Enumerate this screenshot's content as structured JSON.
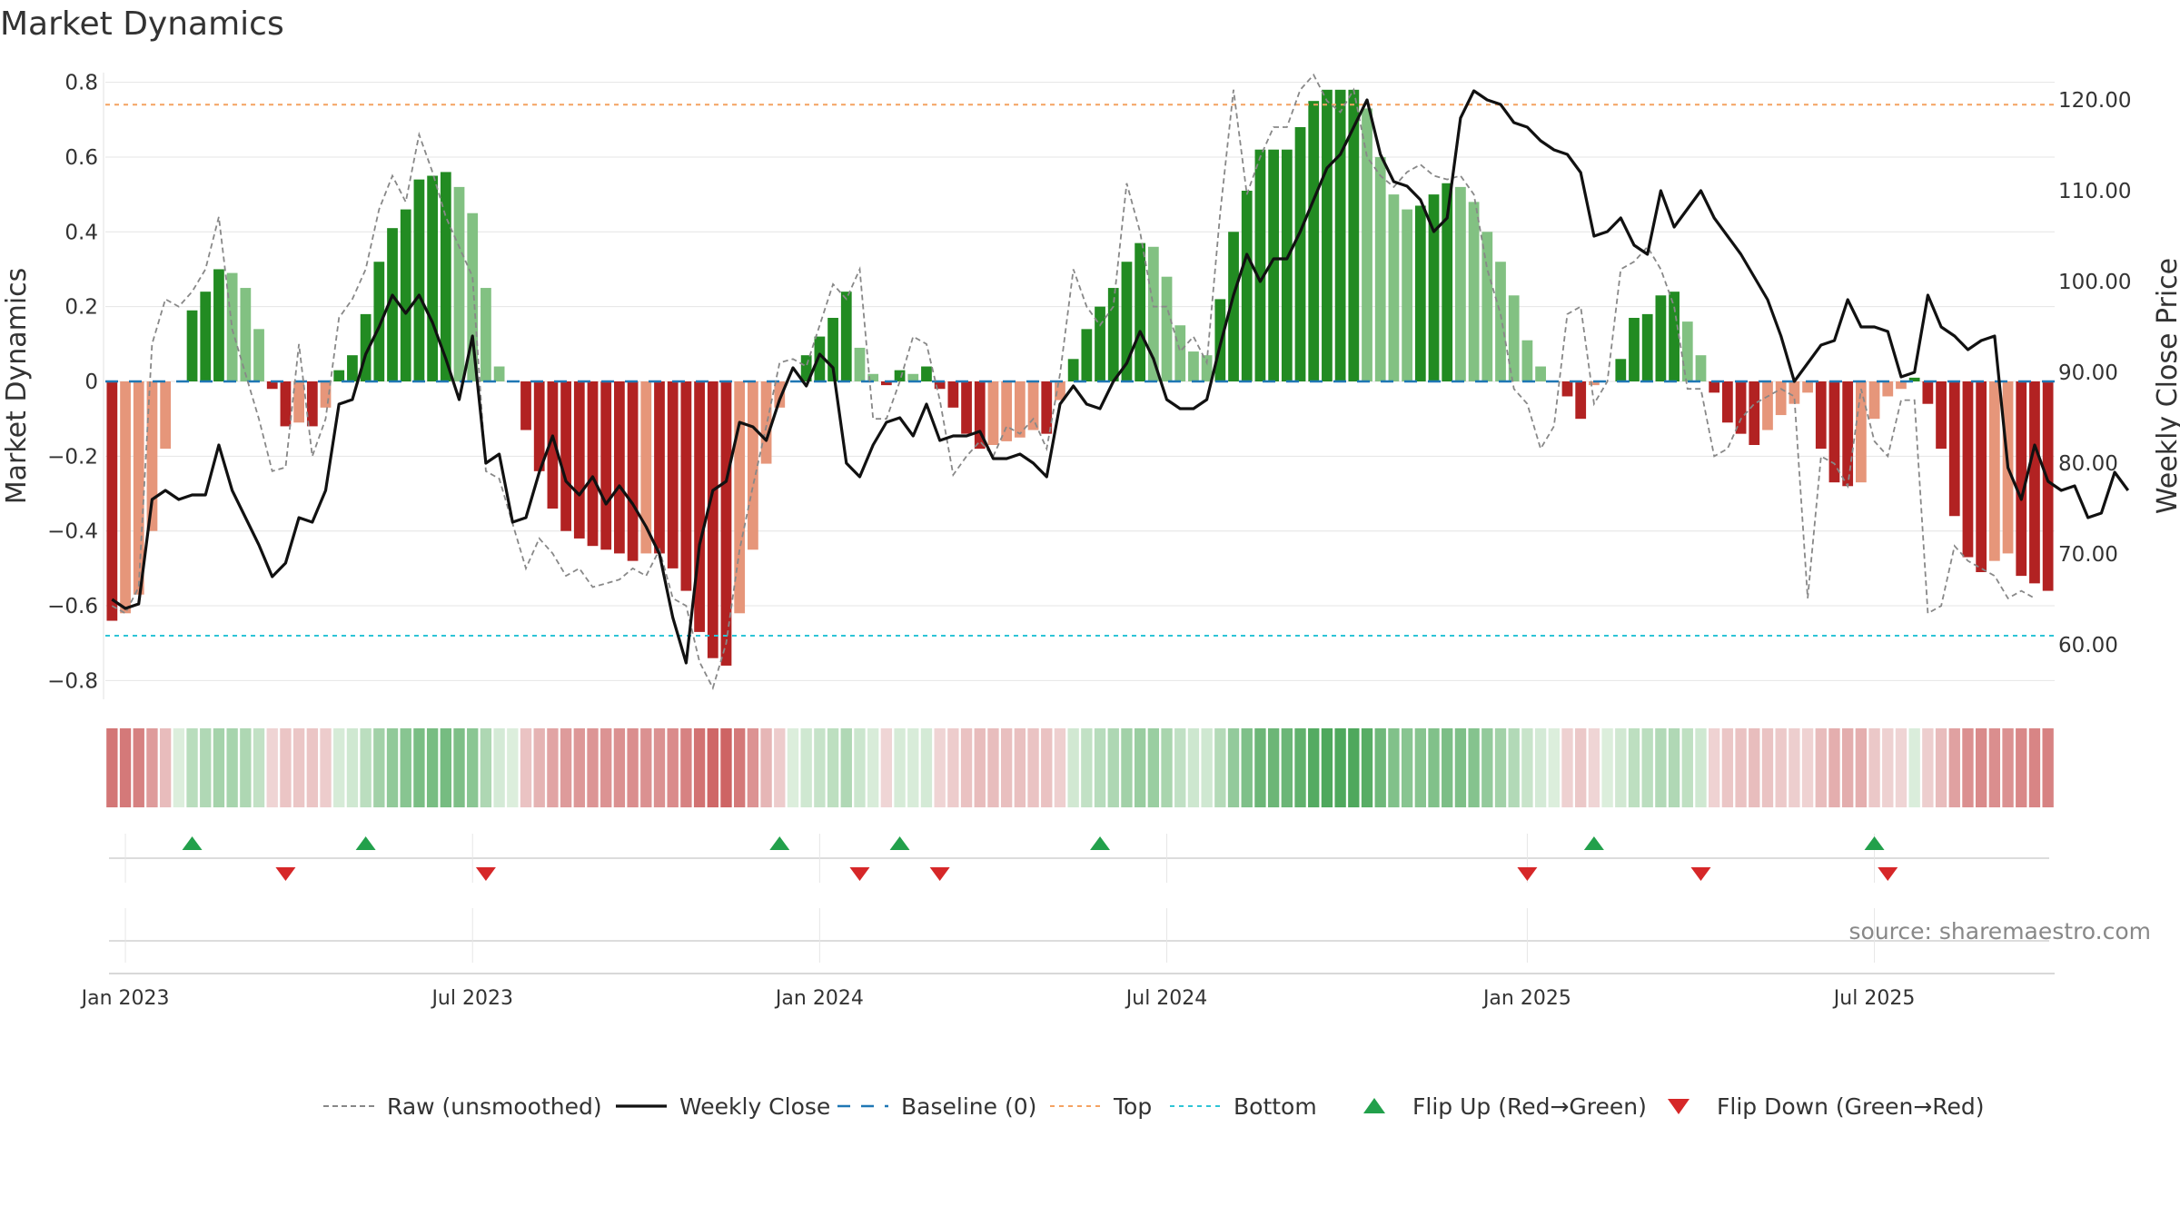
{
  "title": "Market Dynamics",
  "source_note": "source: sharemaestro.com",
  "colors": {
    "up_strong": "#228b22",
    "up_light": "#82c182",
    "down_strong": "#b22222",
    "down_light": "#e6967a",
    "close_line": "#111111",
    "raw_line": "#888888",
    "baseline": "#1f77b4",
    "top_line": "#f4a261",
    "bottom_line": "#2ec4d6",
    "flip_up": "#22a04b",
    "flip_down": "#d62728"
  },
  "chart_data": {
    "type": "bar",
    "title": "Market Dynamics",
    "ylabel": "Market Dynamics",
    "y2label": "Weekly Close Price",
    "ylim": [
      -0.85,
      0.85
    ],
    "y2lim": [
      54.0,
      124.0
    ],
    "yticks": [
      -0.8,
      -0.6,
      -0.4,
      -0.2,
      0,
      0.2,
      0.4,
      0.6,
      0.8
    ],
    "ytick_labels": [
      "−0.8",
      "−0.6",
      "−0.4",
      "−0.2",
      "0",
      "0.2",
      "0.4",
      "0.6",
      "0.8"
    ],
    "y2ticks": [
      60,
      70,
      80,
      90,
      100,
      110,
      120
    ],
    "y2tick_labels": [
      "60.00",
      "70.00",
      "80.00",
      "90.00",
      "100.00",
      "110.00",
      "120.00"
    ],
    "x_ticks": [
      "Jan 2023",
      "Jul 2023",
      "Jan 2024",
      "Jul 2024",
      "Jan 2025",
      "Jul 2025"
    ],
    "x_start": "2022-12-26",
    "top_level": 0.74,
    "bottom_level": -0.68,
    "baseline": 0,
    "grid": true,
    "legend_position": "bottom",
    "series": [
      {
        "name": "Market Dynamics",
        "kind": "bar",
        "values": [
          -0.64,
          -0.62,
          -0.57,
          -0.4,
          -0.18,
          0,
          0.19,
          0.24,
          0.3,
          0.29,
          0.25,
          0.14,
          -0.02,
          -0.12,
          -0.11,
          -0.12,
          -0.07,
          0.03,
          0.07,
          0.18,
          0.32,
          0.41,
          0.46,
          0.54,
          0.55,
          0.56,
          0.52,
          0.45,
          0.25,
          0.04,
          0,
          -0.13,
          -0.24,
          -0.34,
          -0.4,
          -0.42,
          -0.44,
          -0.45,
          -0.46,
          -0.48,
          -0.46,
          -0.46,
          -0.5,
          -0.56,
          -0.67,
          -0.74,
          -0.76,
          -0.62,
          -0.45,
          -0.22,
          -0.07,
          0,
          0.07,
          0.12,
          0.17,
          0.24,
          0.09,
          0.02,
          -0.01,
          0.03,
          0.02,
          0.04,
          -0.02,
          -0.07,
          -0.14,
          -0.18,
          -0.17,
          -0.16,
          -0.15,
          -0.13,
          -0.14,
          -0.05,
          0.06,
          0.14,
          0.2,
          0.25,
          0.32,
          0.37,
          0.36,
          0.28,
          0.15,
          0.08,
          0.07,
          0.22,
          0.4,
          0.51,
          0.62,
          0.62,
          0.62,
          0.68,
          0.75,
          0.78,
          0.78,
          0.78,
          0.73,
          0.6,
          0.5,
          0.46,
          0.47,
          0.5,
          0.53,
          0.52,
          0.48,
          0.4,
          0.32,
          0.23,
          0.11,
          0.04,
          0,
          -0.04,
          -0.1,
          -0.01,
          0,
          0.06,
          0.17,
          0.18,
          0.23,
          0.24,
          0.16,
          0.07,
          -0.03,
          -0.11,
          -0.14,
          -0.17,
          -0.13,
          -0.09,
          -0.06,
          -0.03,
          -0.18,
          -0.27,
          -0.28,
          -0.27,
          -0.1,
          -0.04,
          -0.02,
          0.01,
          -0.06,
          -0.18,
          -0.36,
          -0.47,
          -0.51,
          -0.48,
          -0.46,
          -0.52,
          -0.54,
          -0.56
        ]
      },
      {
        "name": "Weekly Close",
        "kind": "line",
        "values": [
          65,
          64,
          64.5,
          76,
          77,
          76,
          76.5,
          76.5,
          82,
          77,
          74,
          71,
          67.5,
          69,
          74,
          73.5,
          77,
          86.5,
          87,
          92,
          95,
          98.5,
          96.5,
          98.5,
          95.5,
          91.5,
          87,
          94,
          80,
          81,
          73.5,
          74,
          79,
          83,
          78,
          76.5,
          78.5,
          75.5,
          77.5,
          75.5,
          73,
          70,
          63,
          58,
          71,
          77,
          78,
          84.5,
          84,
          82.5,
          87,
          90.5,
          88.5,
          92,
          90.5,
          80,
          78.5,
          82,
          84.5,
          85,
          83,
          86.5,
          82.5,
          83,
          83,
          83.5,
          80.5,
          80.5,
          81,
          80,
          78.5,
          86.5,
          88.5,
          86.5,
          86,
          89,
          91,
          94.5,
          91.5,
          87,
          86,
          86,
          87,
          93,
          98.5,
          103,
          100,
          102.5,
          102.5,
          105.5,
          109,
          112.5,
          114,
          117,
          120,
          114,
          111,
          110.5,
          109,
          105.5,
          107,
          118,
          121,
          120,
          119.5,
          117.5,
          117,
          115.5,
          114.5,
          114,
          112,
          105,
          105.5,
          107,
          104,
          103,
          110,
          106,
          108,
          110,
          107,
          105,
          103,
          100.5,
          98,
          94,
          89,
          91,
          93,
          93.5,
          98,
          95,
          95,
          94.5,
          89.5,
          90,
          98.5,
          95,
          94,
          92.5,
          93.5,
          94,
          79.5,
          76,
          82,
          78,
          77,
          77.5,
          74,
          74.5,
          79,
          77
        ]
      },
      {
        "name": "Raw (unsmoothed)",
        "kind": "line",
        "values": [
          -0.6,
          -0.62,
          -0.55,
          0.1,
          0.22,
          0.2,
          0.24,
          0.3,
          0.44,
          0.14,
          0.02,
          -0.1,
          -0.24,
          -0.23,
          0.1,
          -0.2,
          -0.1,
          0.17,
          0.22,
          0.3,
          0.46,
          0.55,
          0.48,
          0.66,
          0.56,
          0.44,
          0.36,
          0.28,
          -0.24,
          -0.26,
          -0.38,
          -0.5,
          -0.42,
          -0.46,
          -0.52,
          -0.5,
          -0.55,
          -0.54,
          -0.53,
          -0.5,
          -0.52,
          -0.45,
          -0.58,
          -0.6,
          -0.75,
          -0.82,
          -0.7,
          -0.45,
          -0.28,
          -0.12,
          0.05,
          0.06,
          0.04,
          0.15,
          0.26,
          0.22,
          0.3,
          -0.1,
          -0.1,
          0.0,
          0.12,
          0.1,
          -0.05,
          -0.25,
          -0.2,
          -0.16,
          -0.2,
          -0.12,
          -0.14,
          -0.1,
          -0.18,
          0.02,
          0.3,
          0.2,
          0.15,
          0.2,
          0.53,
          0.4,
          0.2,
          0.2,
          0.08,
          0.12,
          0.05,
          0.45,
          0.78,
          0.5,
          0.6,
          0.68,
          0.68,
          0.78,
          0.82,
          0.75,
          0.72,
          0.78,
          0.6,
          0.55,
          0.52,
          0.56,
          0.58,
          0.55,
          0.54,
          0.55,
          0.5,
          0.3,
          0.18,
          -0.02,
          -0.06,
          -0.18,
          -0.12,
          0.18,
          0.2,
          -0.06,
          0.0,
          0.3,
          0.32,
          0.36,
          0.3,
          0.2,
          -0.02,
          -0.02,
          -0.2,
          -0.18,
          -0.1,
          -0.06,
          -0.04,
          -0.02,
          -0.04,
          -0.58,
          -0.2,
          -0.22,
          -0.28,
          -0.02,
          -0.16,
          -0.2,
          -0.05,
          -0.05,
          -0.62,
          -0.6,
          -0.44,
          -0.48,
          -0.5,
          -0.52,
          -0.58,
          -0.56,
          -0.58
        ]
      },
      {
        "name": "Baseline (0)",
        "kind": "line"
      },
      {
        "name": "Top",
        "kind": "line"
      },
      {
        "name": "Bottom",
        "kind": "line"
      },
      {
        "name": "Flip Up (Red→Green)",
        "kind": "marker",
        "dates": [
          "2023-02-06",
          "2023-05-08",
          "2023-12-11",
          "2024-02-12",
          "2024-05-27",
          "2025-02-10",
          "2025-07-07"
        ]
      },
      {
        "name": "Flip Down (Green→Red)",
        "kind": "marker",
        "dates": [
          "2023-03-27",
          "2023-07-10",
          "2024-01-22",
          "2024-03-04",
          "2025-01-06",
          "2025-04-07",
          "2025-07-14"
        ]
      }
    ]
  },
  "legend": [
    {
      "key": "raw",
      "label": "Raw (unsmoothed)"
    },
    {
      "key": "close",
      "label": "Weekly Close"
    },
    {
      "key": "baseline",
      "label": "Baseline (0)"
    },
    {
      "key": "top",
      "label": "Top"
    },
    {
      "key": "bottom",
      "label": "Bottom"
    },
    {
      "key": "flip_up",
      "label": "Flip Up (Red→Green)"
    },
    {
      "key": "flip_down",
      "label": "Flip Down (Green→Red)"
    }
  ]
}
